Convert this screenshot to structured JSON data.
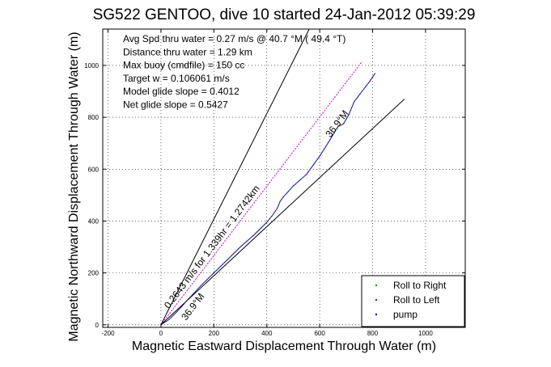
{
  "chart_data": {
    "type": "line",
    "title": "SG522 GENTOO, dive 10 started 24-Jan-2012 05:39:29",
    "xlabel": "Magnetic Eastward Displacement Through Water (m)",
    "ylabel": "Magnetic Northward Displacement Through Water (m)",
    "xlim": [
      -220,
      1150
    ],
    "ylim": [
      -10,
      1140
    ],
    "xticks": [
      "-200",
      "0",
      "200",
      "400",
      "600",
      "800",
      "1000"
    ],
    "yticks": [
      "0",
      "200",
      "400",
      "600",
      "800",
      "1000"
    ],
    "grid": true,
    "legend_position": "bottom-right",
    "legend": [
      "Roll to Right",
      "Roll to Left",
      "pump"
    ],
    "annotations": [
      "Avg Spd thru water =  0.27 m/s @  40.7   °M ( 49.4 °T)",
      "Distance thru water =  1.29 km",
      "Max buoy (cmdfile) = 150 cc",
      "Target w = 0.106061 m/s",
      "Model glide slope = 0.4012",
      "Net glide slope = 0.5427"
    ],
    "line_labels": [
      "0.2643 m/s for 1.339hr = 1.2742km",
      "36.9°M",
      "36.9°M"
    ],
    "series": [
      {
        "color": "#0000cc",
        "x": [
          0,
          30,
          60,
          100,
          150,
          200,
          250,
          300,
          350,
          400,
          420,
          440,
          450,
          460,
          500,
          550,
          600,
          640,
          670,
          690,
          710,
          730,
          760,
          790,
          810
        ],
        "y": [
          0,
          20,
          50,
          95,
          150,
          200,
          250,
          300,
          345,
          395,
          420,
          450,
          475,
          490,
          535,
          580,
          650,
          715,
          765,
          775,
          810,
          860,
          900,
          940,
          970
        ]
      },
      {
        "color": "#cc00cc",
        "x": [
          0,
          760
        ],
        "y": [
          0,
          1015
        ]
      },
      {
        "color": "#000000",
        "x": [
          0,
          560
        ],
        "y": [
          0,
          1140
        ]
      },
      {
        "color": "#000000",
        "x": [
          0,
          920
        ],
        "y": [
          0,
          870
        ]
      }
    ]
  }
}
